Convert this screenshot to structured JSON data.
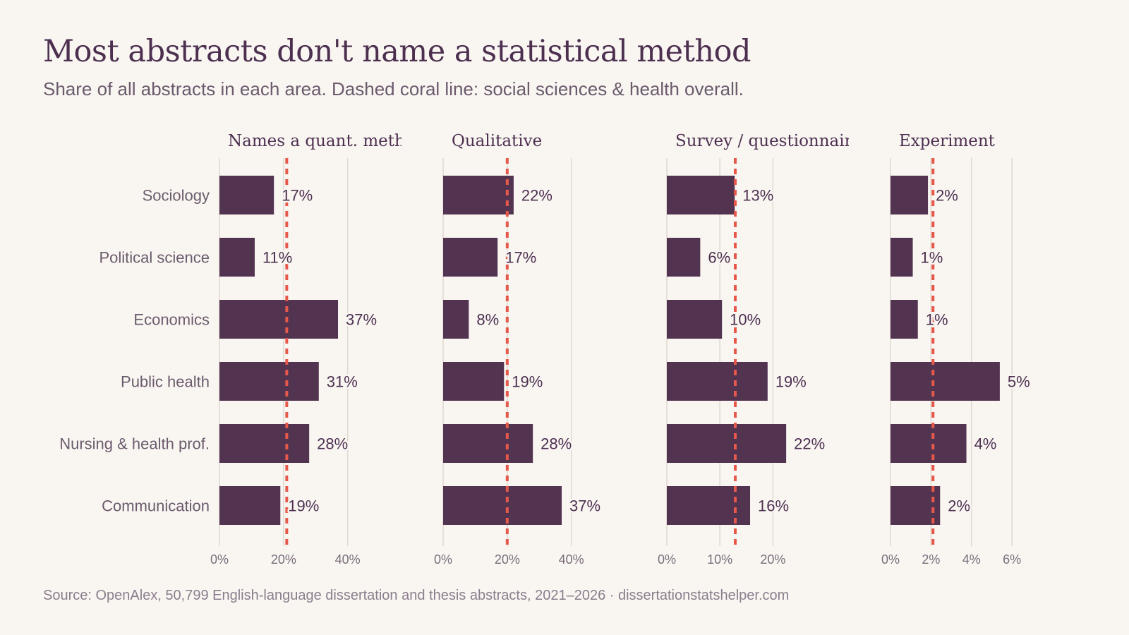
{
  "title": "Most abstracts don't name a statistical method",
  "subtitle": "Share of all abstracts in each area. Dashed coral line: social sciences & health overall.",
  "source": "Source: OpenAlex, 50,799 English-language dissertation and thesis abstracts, 2021–2026  ·  dissertationstatshelper.com",
  "colors": {
    "bar": "#523350",
    "reference_line": "#e5584a",
    "grid": "#e2d9d0",
    "background": "#f9f6f2"
  },
  "chart_data": {
    "type": "bar",
    "orientation": "horizontal",
    "layout": "small-multiples",
    "categories": [
      "Sociology",
      "Political science",
      "Economics",
      "Public health",
      "Nursing & health prof.",
      "Communication"
    ],
    "panels": [
      {
        "title": "Names a quant. method",
        "values": [
          17,
          11,
          37,
          31,
          28,
          19
        ],
        "labels": [
          "17%",
          "11%",
          "37%",
          "31%",
          "28%",
          "19%"
        ],
        "reference": 21,
        "xlim": [
          0,
          48
        ],
        "ticks": [
          0,
          20,
          40
        ],
        "tick_labels": [
          "0%",
          "20%",
          "40%"
        ]
      },
      {
        "title": "Qualitative",
        "values": [
          22,
          17,
          8,
          19,
          28,
          37
        ],
        "labels": [
          "22%",
          "17%",
          "8%",
          "19%",
          "28%",
          "37%"
        ],
        "reference": 20,
        "xlim": [
          0,
          48
        ],
        "ticks": [
          0,
          20,
          40
        ],
        "tick_labels": [
          "0%",
          "20%",
          "40%"
        ]
      },
      {
        "title": "Survey / questionnaire",
        "values": [
          12.8,
          6.3,
          10.4,
          19,
          22.5,
          15.7
        ],
        "labels": [
          "13%",
          "6%",
          "10%",
          "19%",
          "22%",
          "16%"
        ],
        "reference": 12.9,
        "xlim": [
          0,
          29
        ],
        "ticks": [
          0,
          10,
          20
        ],
        "tick_labels": [
          "0%",
          "10%",
          "20%"
        ]
      },
      {
        "title": "Experiment",
        "values": [
          1.85,
          1.1,
          1.35,
          5.4,
          3.75,
          2.45
        ],
        "labels": [
          "2%",
          "1%",
          "1%",
          "5%",
          "4%",
          "2%"
        ],
        "reference": 2.1,
        "xlim": [
          0,
          7.6
        ],
        "ticks": [
          0,
          2,
          4,
          6
        ],
        "tick_labels": [
          "0%",
          "2%",
          "4%",
          "6%"
        ]
      }
    ]
  }
}
